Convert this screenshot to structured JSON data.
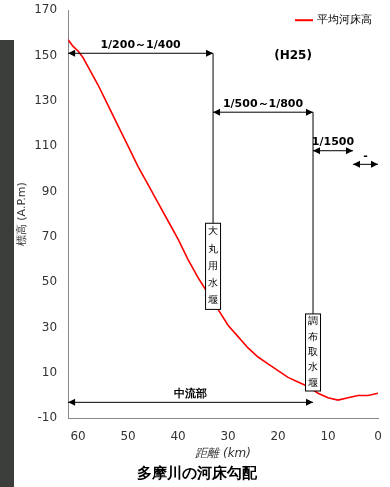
{
  "chart_data": {
    "type": "line",
    "title": "多摩川の河床勾配",
    "x_label": "距離 (km)",
    "y_label": "標高 (A.P.m)",
    "x": [
      62,
      61,
      60,
      59,
      58,
      56,
      54,
      52,
      50,
      48,
      46,
      44,
      42,
      40,
      38,
      36,
      34,
      33,
      32,
      30,
      28,
      26,
      24,
      22,
      20,
      18,
      16,
      14,
      12,
      10,
      8,
      6,
      4,
      2,
      0
    ],
    "series": [
      {
        "name": "平均河床高",
        "color": "#ff0000",
        "values": [
          157,
          154,
          152,
          149,
          145,
          137,
          128,
          119,
          110,
          101,
          93,
          85,
          77,
          69,
          60,
          52,
          45,
          42,
          38,
          31,
          26,
          21,
          17,
          14,
          11,
          8,
          6,
          4,
          1,
          -1,
          -2,
          -1,
          0,
          0,
          1
        ]
      }
    ],
    "xlim": [
      62,
      0
    ],
    "xticks": [
      60,
      50,
      40,
      30,
      20,
      10,
      0
    ],
    "ylim": [
      -10,
      170
    ],
    "yticks": [
      -10,
      10,
      30,
      50,
      70,
      90,
      110,
      130,
      150,
      170
    ],
    "grid": false,
    "legend": "upper right",
    "annotations": [
      {
        "text": "(H25)",
        "x": 17,
        "y": 150
      },
      {
        "text": "1/200～1/400",
        "x": [
          62,
          33
        ],
        "y": 151
      },
      {
        "text": "1/500～1/800",
        "x": [
          33,
          13
        ],
        "y": 125
      },
      {
        "text": "1/1500",
        "x": [
          13,
          5
        ],
        "y": 108
      },
      {
        "text": "-",
        "x": [
          5,
          0
        ],
        "y": 102
      },
      {
        "text": "大丸用水堰",
        "x": 33,
        "y": [
          38,
          76
        ]
      },
      {
        "text": "調布取水堰",
        "x": 13,
        "y": [
          2,
          36
        ]
      },
      {
        "text": "中流部",
        "x": [
          62,
          13
        ],
        "y": -3
      }
    ]
  }
}
